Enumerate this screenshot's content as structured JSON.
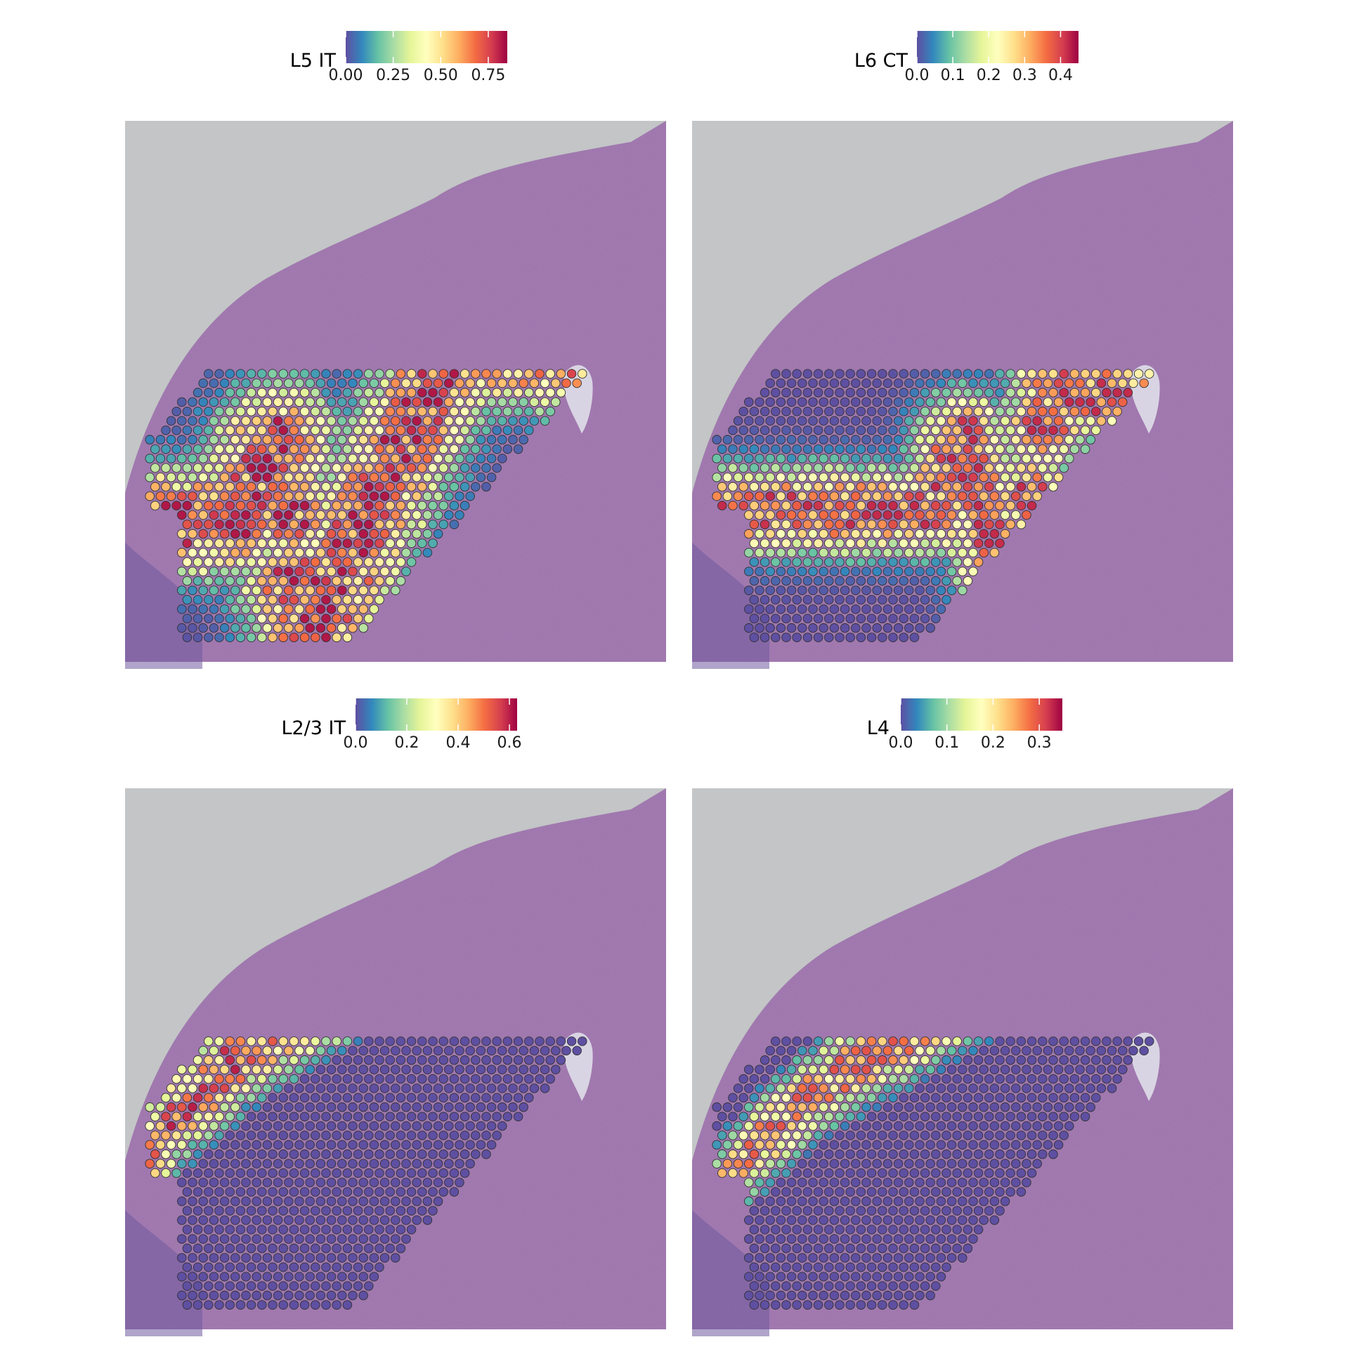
{
  "chart_data": [
    {
      "type": "heatmap",
      "legend": {
        "title": "L5 IT",
        "tick_labels": [
          "0.00",
          "0.25",
          "0.50",
          "0.75"
        ],
        "ticks": [
          0,
          0.25,
          0.5,
          0.75
        ],
        "range": [
          0,
          0.85
        ],
        "position": "top"
      },
      "colormap": "Spectral (reversed)",
      "pattern": {
        "shape": "band",
        "peak": 0.82,
        "ctrl": [
          [
            1.0,
            0.44
          ],
          [
            0.6,
            0.42
          ],
          [
            0.28,
            0.56
          ],
          [
            0.22,
            0.74
          ],
          [
            0.33,
            0.97
          ]
        ],
        "width": 0.11
      }
    },
    {
      "type": "heatmap",
      "legend": {
        "title": "L6 CT",
        "tick_labels": [
          "0.0",
          "0.1",
          "0.2",
          "0.3",
          "0.4"
        ],
        "ticks": [
          0,
          0.1,
          0.2,
          0.3,
          0.4
        ],
        "range": [
          0,
          0.45
        ],
        "position": "top"
      },
      "colormap": "Spectral (reversed)",
      "pattern": {
        "shape": "band",
        "peak": 0.42,
        "ctrl": [
          [
            1.0,
            0.55
          ],
          [
            0.66,
            0.49
          ],
          [
            0.5,
            0.58
          ],
          [
            0.45,
            0.72
          ],
          [
            0.6,
            0.95
          ]
        ],
        "width": 0.085
      }
    },
    {
      "type": "heatmap",
      "legend": {
        "title": "L2/3 IT",
        "tick_labels": [
          "0.0",
          "0.2",
          "0.4",
          "0.6"
        ],
        "ticks": [
          0,
          0.2,
          0.4,
          0.6
        ],
        "range": [
          0,
          0.63
        ],
        "position": "top"
      },
      "colormap": "Spectral (reversed)",
      "pattern": {
        "shape": "edge",
        "peak": 0.6,
        "depth": [
          0.02,
          0.2
        ]
      }
    },
    {
      "type": "heatmap",
      "legend": {
        "title": "L4",
        "tick_labels": [
          "0.0",
          "0.1",
          "0.2",
          "0.3"
        ],
        "ticks": [
          0,
          0.1,
          0.2,
          0.3
        ],
        "range": [
          0,
          0.35
        ],
        "position": "top"
      },
      "colormap": "Spectral (reversed)",
      "pattern": {
        "shape": "edge",
        "peak": 0.3,
        "depth": [
          0.12,
          0.27
        ]
      }
    }
  ],
  "colors": {
    "tissue": "#a57fb2",
    "background": "#c3c5c6",
    "spot_outline": "#333333",
    "spectral_r": [
      "#5e4fa2",
      "#3288bd",
      "#66c2a5",
      "#abdda4",
      "#e6f598",
      "#ffffbf",
      "#fee08b",
      "#fdae61",
      "#f46d43",
      "#d53e4f",
      "#9e0142"
    ]
  }
}
